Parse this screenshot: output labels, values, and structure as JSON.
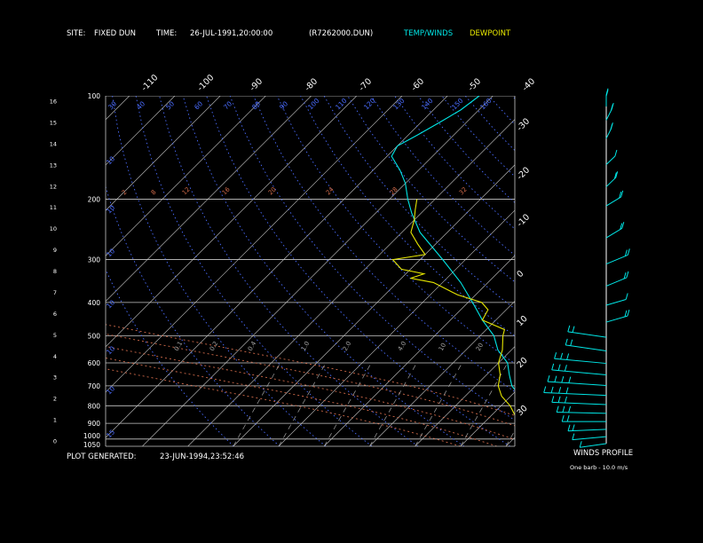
{
  "header": {
    "site_label": "SITE:",
    "site_value": "FIXED DUN",
    "time_label": "TIME:",
    "time_value": "26-JUL-1991,20:00:00",
    "file_id": "(R7262000.DUN)",
    "legend_temp": "TEMP/WINDS",
    "legend_dew": "DEWPOINT"
  },
  "footer": {
    "generated_label": "PLOT GENERATED:",
    "generated_value": "23-JUN-1994,23:52:46"
  },
  "winds_panel": {
    "title": "WINDS PROFILE",
    "note": "One barb - 10.0 m/s"
  },
  "colors": {
    "temp": "#00e6e6",
    "dewpoint": "#e6e600",
    "isotherm": "#c8c8c8",
    "dry_adiabat": "#4a6cff",
    "moist_adiabat": "#d06a4a",
    "mixing_ratio": "#a0a0a0",
    "text": "#ffffff"
  },
  "chart_data": {
    "type": "line",
    "diagram": "skew-t log-p",
    "pressure_labels": [
      "100",
      "200",
      "300",
      "400",
      "500",
      "600",
      "700",
      "800",
      "900",
      "1000",
      "1050"
    ],
    "height_labels": [
      "0",
      "1",
      "2",
      "3",
      "4",
      "5",
      "6",
      "7",
      "8",
      "9",
      "10",
      "11",
      "12",
      "13",
      "14",
      "15",
      "16"
    ],
    "isotherm_labels_top": [
      "-110",
      "-100",
      "-90",
      "-80",
      "-70",
      "-60",
      "-50",
      "-40"
    ],
    "isotherm_labels_right": [
      "-30",
      "-20",
      "-10",
      "0",
      "10",
      "20",
      "30"
    ],
    "theta_labels_top": [
      "30",
      "40",
      "50",
      "60",
      "70",
      "80",
      "90",
      "100",
      "110",
      "120",
      "130",
      "140",
      "150",
      "160"
    ],
    "theta_labels_left": [
      "10",
      "10",
      "10",
      "10",
      "10",
      "10",
      "15"
    ],
    "theta_e_labels": [
      "2",
      "8",
      "12",
      "16",
      "20",
      "24",
      "28",
      "32"
    ],
    "mixing_ratio_labels": [
      "0.1",
      "0.2",
      "0.4",
      "1.0",
      "2.0",
      "4.0",
      "10",
      "20"
    ],
    "series": [
      {
        "name": "TEMP/WINDS",
        "pressure_hpa": [
          1030,
          1000,
          975,
          950,
          925,
          900,
          850,
          800,
          750,
          700,
          650,
          600,
          550,
          500,
          450,
          400,
          350,
          300,
          250,
          220,
          200,
          180,
          165,
          150,
          140,
          130,
          120,
          110,
          100
        ],
        "temp_c": [
          31,
          26,
          24,
          23,
          22,
          21,
          19,
          16,
          12,
          8,
          5,
          2,
          -3,
          -7,
          -13,
          -19,
          -26,
          -35,
          -46,
          -52,
          -56,
          -60,
          -64,
          -69,
          -70,
          -68,
          -66,
          -64,
          -63
        ]
      },
      {
        "name": "DEWPOINT",
        "pressure_hpa": [
          1030,
          1010,
          1000,
          975,
          950,
          925,
          900,
          875,
          850,
          800,
          750,
          700,
          650,
          600,
          550,
          500,
          480,
          450,
          420,
          400,
          380,
          350,
          340,
          330,
          320,
          300,
          290,
          270,
          250,
          230,
          215,
          200
        ],
        "dewpoint_c": [
          25,
          26,
          24,
          23,
          21,
          20,
          18,
          17,
          15,
          12,
          8,
          5,
          3,
          0,
          -2,
          -5,
          -6,
          -13,
          -14,
          -17,
          -24,
          -32,
          -38,
          -36,
          -42,
          -46,
          -40,
          -44,
          -48,
          -50,
          -52,
          -54
        ]
      }
    ],
    "winds": {
      "pressure_hpa": [
        1050,
        1000,
        950,
        900,
        850,
        800,
        750,
        700,
        650,
        600,
        550,
        500,
        450,
        400,
        350,
        300,
        250,
        200,
        175,
        150,
        125,
        110,
        100
      ],
      "speed_ms": [
        3,
        5,
        6,
        8,
        10,
        12,
        15,
        14,
        13,
        12,
        9,
        8,
        6,
        5,
        8,
        9,
        8,
        7,
        6,
        5,
        6,
        8,
        9
      ],
      "direction_deg": [
        300,
        290,
        280,
        270,
        265,
        260,
        260,
        255,
        250,
        250,
        240,
        240,
        230,
        230,
        220,
        220,
        210,
        210,
        200,
        200,
        190,
        190,
        180
      ]
    },
    "axis": {
      "pressure_range_hpa": [
        100,
        1050
      ],
      "pressure_scale": "log",
      "isotherm_interval_c": 10
    },
    "grid": true
  }
}
